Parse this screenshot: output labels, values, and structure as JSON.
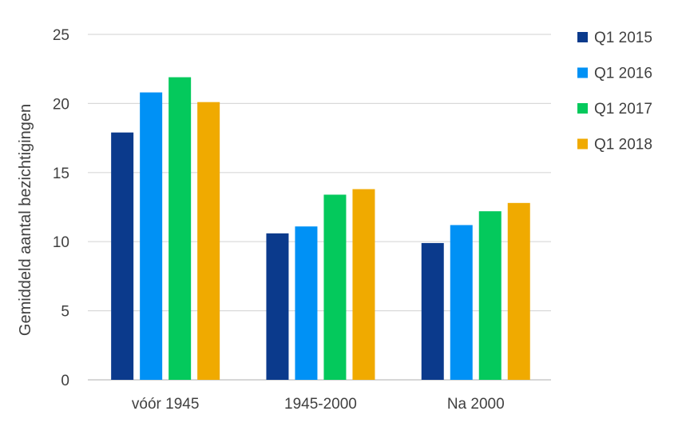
{
  "chart_data": {
    "type": "bar",
    "ylabel": "Gemiddeld aantal bezichtigingen",
    "ylim": [
      0,
      25
    ],
    "yticks": [
      "0",
      "5",
      "10",
      "15",
      "20",
      "25"
    ],
    "categories": [
      "vóór 1945",
      "1945-2000",
      "Na 2000"
    ],
    "grid": true,
    "legend_position": "right",
    "series": [
      {
        "name": "Q1 2015",
        "color": "#0b3a8c",
        "values": [
          17.9,
          10.6,
          9.9
        ]
      },
      {
        "name": "Q1 2016",
        "color": "#0091f5",
        "values": [
          20.8,
          11.1,
          11.2
        ]
      },
      {
        "name": "Q1 2017",
        "color": "#04c95c",
        "values": [
          21.9,
          13.4,
          12.2
        ]
      },
      {
        "name": "Q1 2018",
        "color": "#f0aa00",
        "values": [
          20.1,
          13.8,
          12.8
        ]
      }
    ]
  }
}
